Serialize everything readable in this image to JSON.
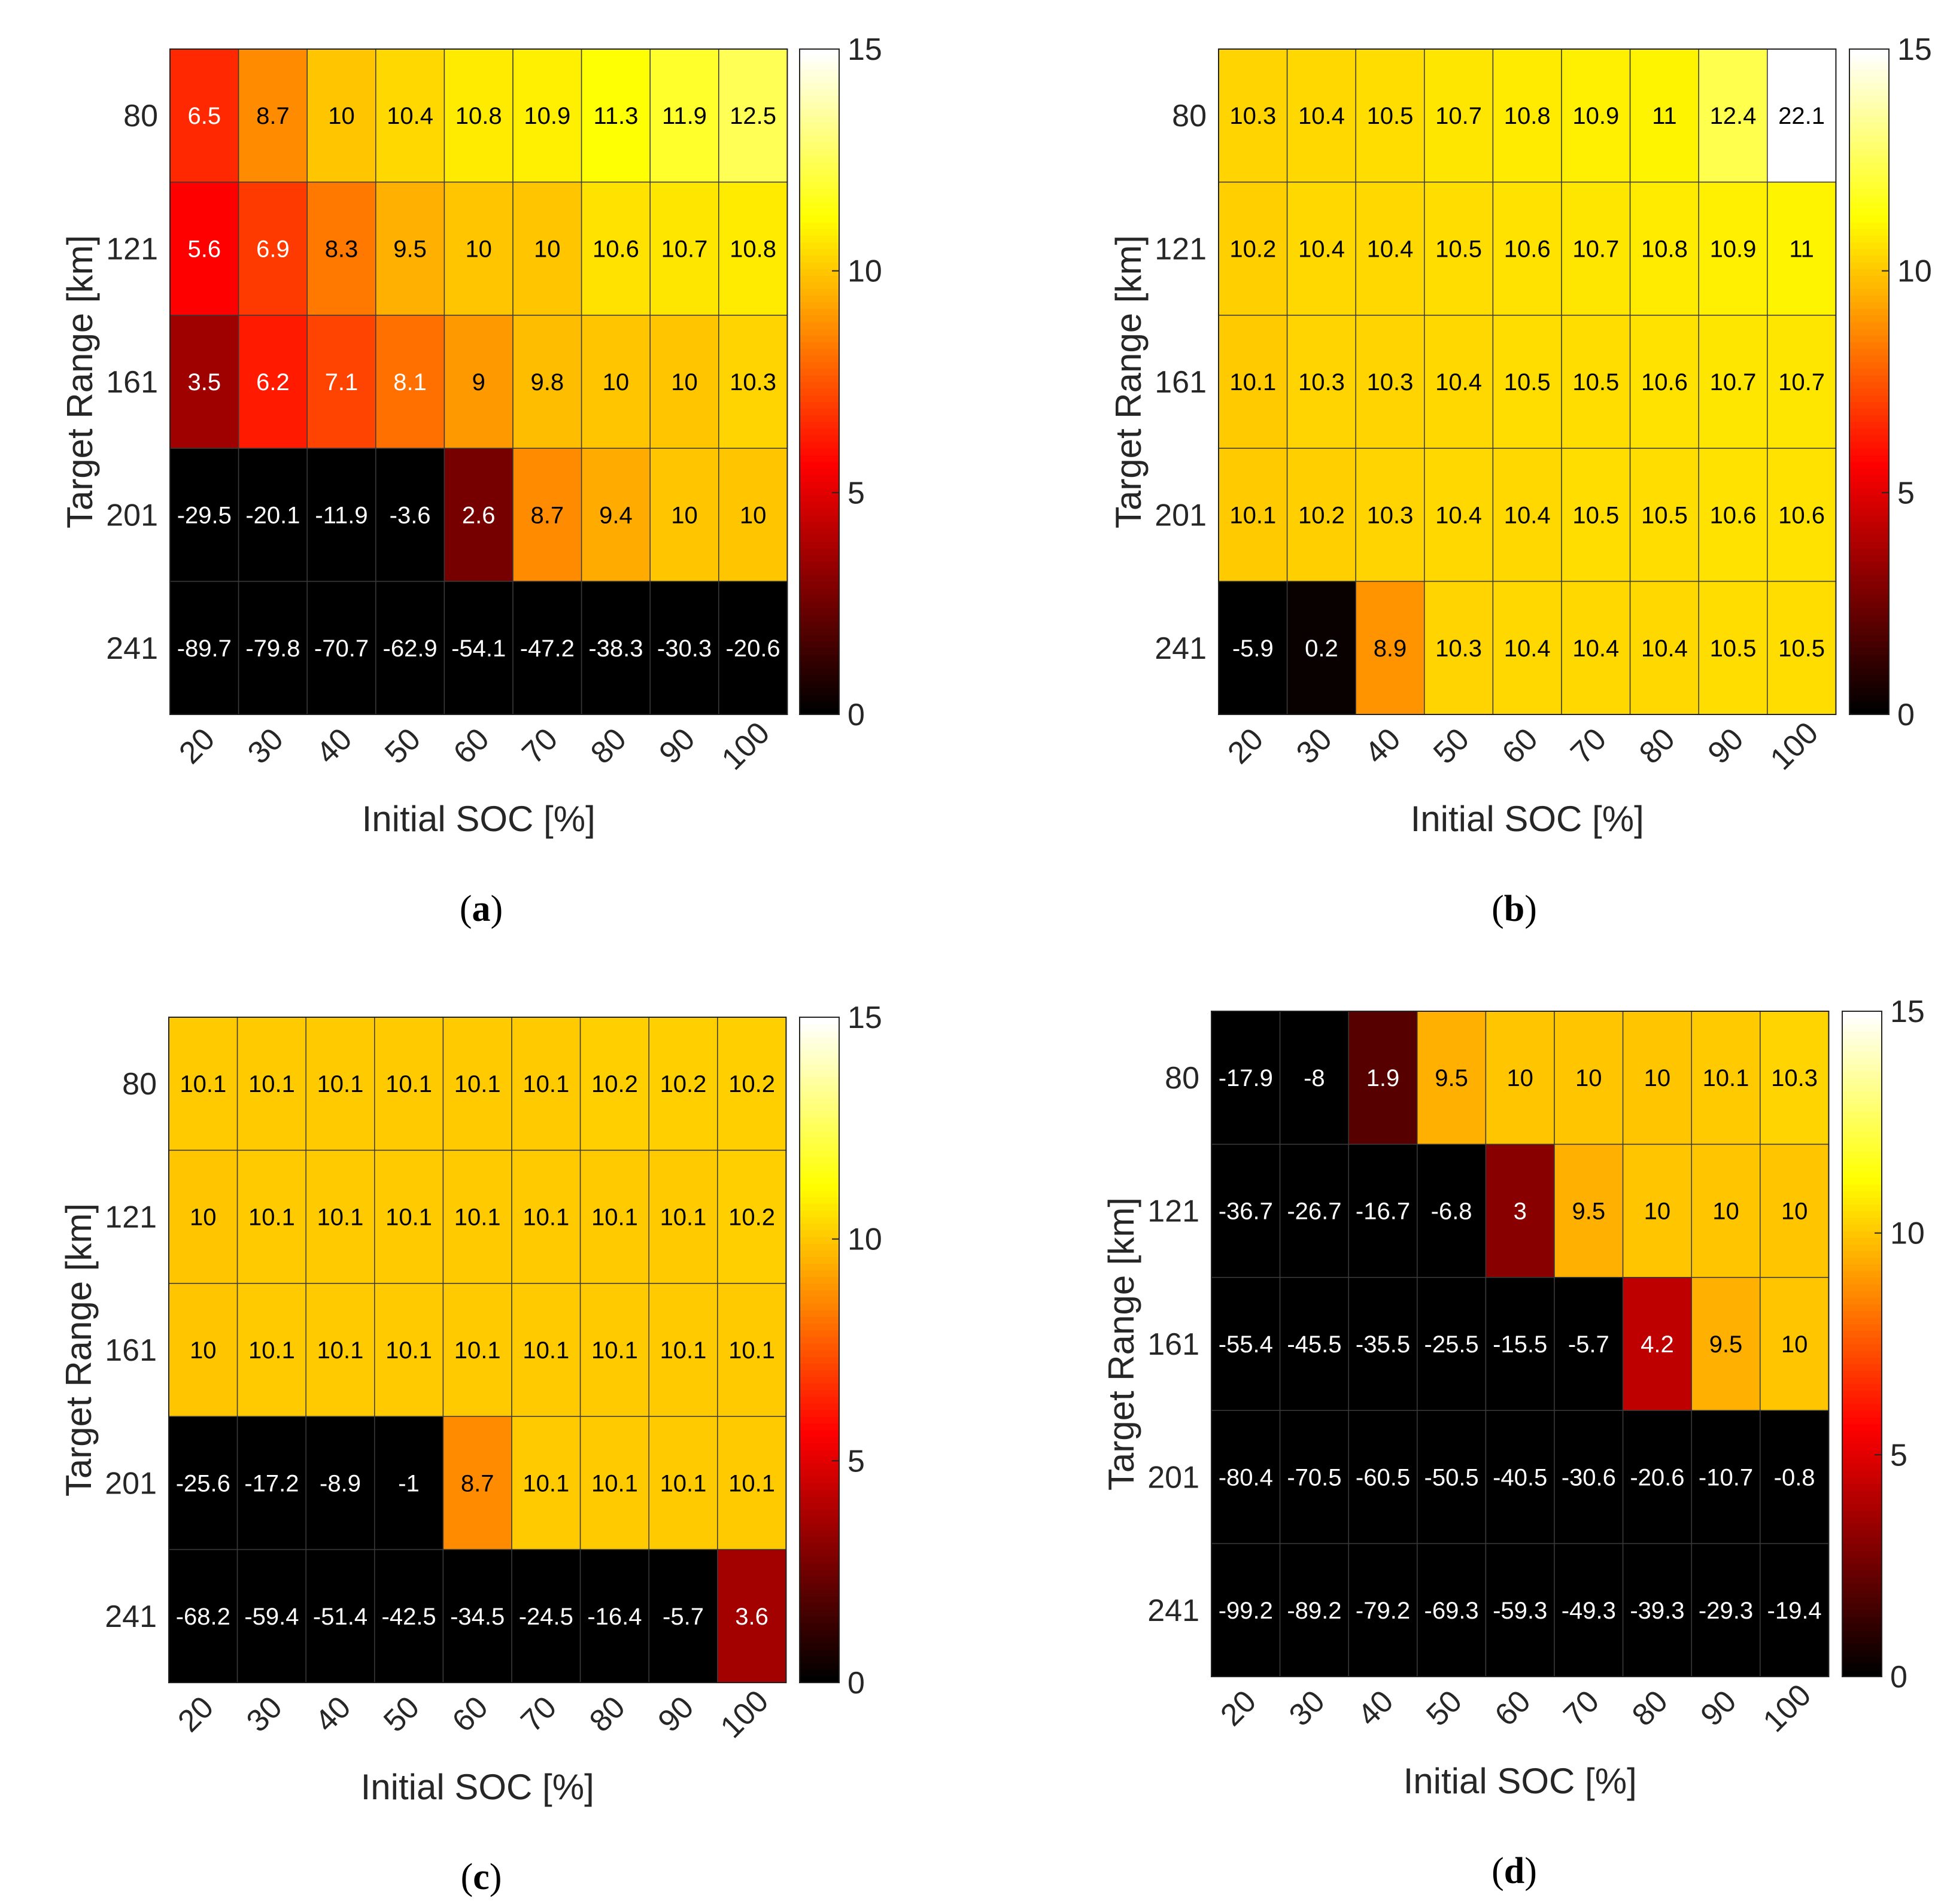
{
  "chart_data": [
    {
      "type": "heatmap",
      "panel_label": "a",
      "xlabel": "Initial SOC [%]",
      "ylabel": "Target Range [km]",
      "x_categories": [
        "20",
        "30",
        "40",
        "50",
        "60",
        "70",
        "80",
        "90",
        "100"
      ],
      "y_categories": [
        "80",
        "121",
        "161",
        "201",
        "241"
      ],
      "values": [
        [
          6.5,
          8.7,
          10,
          10.4,
          10.8,
          10.9,
          11.3,
          11.9,
          12.5
        ],
        [
          5.6,
          6.9,
          8.3,
          9.5,
          10,
          10,
          10.6,
          10.7,
          10.8
        ],
        [
          3.5,
          6.2,
          7.1,
          8.1,
          9,
          9.8,
          10,
          10,
          10.3
        ],
        [
          -29.5,
          -20.1,
          -11.9,
          -3.6,
          2.6,
          8.7,
          9.4,
          10,
          10
        ],
        [
          -89.7,
          -79.8,
          -70.7,
          -62.9,
          -54.1,
          -47.2,
          -38.3,
          -30.3,
          -20.6
        ]
      ],
      "colorbar": {
        "min": 0,
        "max": 15,
        "ticks": [
          "0",
          "5",
          "10",
          "15"
        ],
        "colormap": "hot"
      }
    },
    {
      "type": "heatmap",
      "panel_label": "b",
      "xlabel": "Initial SOC [%]",
      "ylabel": "Target Range [km]",
      "x_categories": [
        "20",
        "30",
        "40",
        "50",
        "60",
        "70",
        "80",
        "90",
        "100"
      ],
      "y_categories": [
        "80",
        "121",
        "161",
        "201",
        "241"
      ],
      "values": [
        [
          10.3,
          10.4,
          10.5,
          10.7,
          10.8,
          10.9,
          11,
          12.4,
          22.1
        ],
        [
          10.2,
          10.4,
          10.4,
          10.5,
          10.6,
          10.7,
          10.8,
          10.9,
          11
        ],
        [
          10.1,
          10.3,
          10.3,
          10.4,
          10.5,
          10.5,
          10.6,
          10.7,
          10.7
        ],
        [
          10.1,
          10.2,
          10.3,
          10.4,
          10.4,
          10.5,
          10.5,
          10.6,
          10.6
        ],
        [
          -5.9,
          0.2,
          8.9,
          10.3,
          10.4,
          10.4,
          10.4,
          10.5,
          10.5
        ]
      ],
      "colorbar": {
        "min": 0,
        "max": 15,
        "ticks": [
          "0",
          "5",
          "10",
          "15"
        ],
        "colormap": "hot"
      }
    },
    {
      "type": "heatmap",
      "panel_label": "c",
      "xlabel": "Initial SOC [%]",
      "ylabel": "Target Range [km]",
      "x_categories": [
        "20",
        "30",
        "40",
        "50",
        "60",
        "70",
        "80",
        "90",
        "100"
      ],
      "y_categories": [
        "80",
        "121",
        "161",
        "201",
        "241"
      ],
      "values": [
        [
          10.1,
          10.1,
          10.1,
          10.1,
          10.1,
          10.1,
          10.2,
          10.2,
          10.2
        ],
        [
          10,
          10.1,
          10.1,
          10.1,
          10.1,
          10.1,
          10.1,
          10.1,
          10.2
        ],
        [
          10,
          10.1,
          10.1,
          10.1,
          10.1,
          10.1,
          10.1,
          10.1,
          10.1
        ],
        [
          -25.6,
          -17.2,
          -8.9,
          -1,
          8.7,
          10.1,
          10.1,
          10.1,
          10.1
        ],
        [
          -68.2,
          -59.4,
          -51.4,
          -42.5,
          -34.5,
          -24.5,
          -16.4,
          -5.7,
          3.6
        ]
      ],
      "colorbar": {
        "min": 0,
        "max": 15,
        "ticks": [
          "0",
          "5",
          "10",
          "15"
        ],
        "colormap": "hot"
      }
    },
    {
      "type": "heatmap",
      "panel_label": "d",
      "xlabel": "Initial SOC [%]",
      "ylabel": "Target Range [km]",
      "x_categories": [
        "20",
        "30",
        "40",
        "50",
        "60",
        "70",
        "80",
        "90",
        "100"
      ],
      "y_categories": [
        "80",
        "121",
        "161",
        "201",
        "241"
      ],
      "values": [
        [
          -17.9,
          -8,
          1.9,
          9.5,
          10,
          10,
          10,
          10.1,
          10.3
        ],
        [
          -36.7,
          -26.7,
          -16.7,
          -6.8,
          3,
          9.5,
          10,
          10,
          10
        ],
        [
          -55.4,
          -45.5,
          -35.5,
          -25.5,
          -15.5,
          -5.7,
          4.2,
          9.5,
          10
        ],
        [
          -80.4,
          -70.5,
          -60.5,
          -50.5,
          -40.5,
          -30.6,
          -20.6,
          -10.7,
          -0.8
        ],
        [
          -99.2,
          -89.2,
          -79.2,
          -69.3,
          -59.3,
          -49.3,
          -39.3,
          -29.3,
          -19.4
        ]
      ],
      "colorbar": {
        "min": 0,
        "max": 15,
        "ticks": [
          "0",
          "5",
          "10",
          "15"
        ],
        "colormap": "hot"
      }
    }
  ]
}
